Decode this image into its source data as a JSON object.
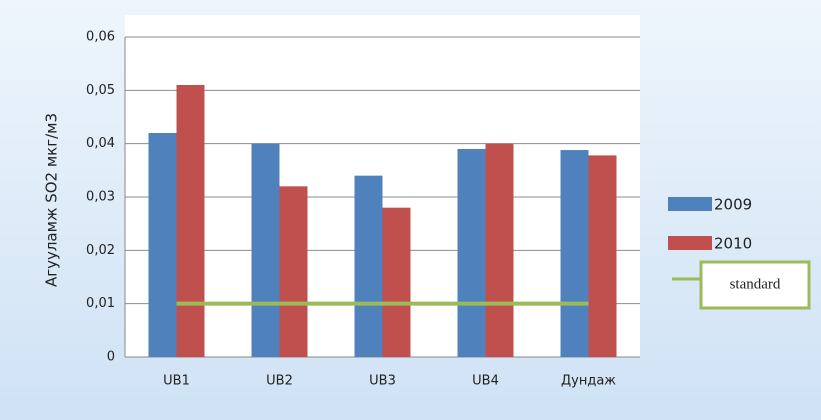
{
  "chart_data": {
    "type": "bar",
    "y_label": "Агууламж SO2 мкг/м3",
    "categories": [
      "UB1",
      "UB2",
      "UB3",
      "UB4",
      "Дундаж"
    ],
    "series": [
      {
        "name": "2009",
        "color": "#4f81bd",
        "values": [
          0.042,
          0.04,
          0.034,
          0.039,
          0.0388
        ]
      },
      {
        "name": "2010",
        "color": "#c0504d",
        "values": [
          0.051,
          0.032,
          0.028,
          0.04,
          0.0378
        ]
      },
      {
        "name": "standard",
        "color": "#9bbb59",
        "type": "line",
        "values": [
          0.01,
          0.01,
          0.01,
          0.01,
          0.01
        ]
      }
    ],
    "ylim": [
      0,
      0.06
    ],
    "yticks": [
      0,
      {
        "value": 0.01,
        "label": "0,01"
      },
      {
        "value": 0.02,
        "label": "0,02"
      },
      {
        "value": 0.03,
        "label": "0,03"
      },
      {
        "value": 0.04,
        "label": "0,04"
      },
      {
        "value": 0.05,
        "label": "0,05"
      },
      {
        "value": 0.06,
        "label": "0,06"
      }
    ],
    "grid": true,
    "legend": "right"
  }
}
